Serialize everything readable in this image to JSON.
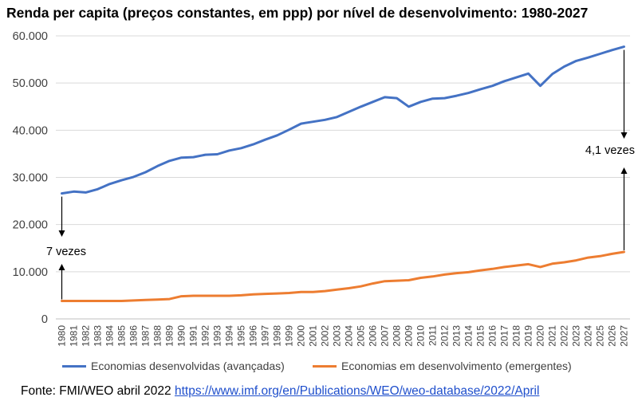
{
  "title": "Renda per capita (preços constantes, em ppp) por nível de desenvolvimento: 1980-2027",
  "footer": {
    "source_label": "Fonte: FMI/WEO abril 2022",
    "url": "https://www.imf.org/en/Publications/WEO/weo-database/2022/April"
  },
  "colors": {
    "advanced": "#4472c4",
    "emerging": "#ed7d31",
    "grid": "#d9d9d9"
  },
  "chart_data": {
    "type": "line",
    "title": "Renda per capita (preços constantes, em ppp) por nível de desenvolvimento: 1980-2027",
    "ylim": [
      0,
      60000
    ],
    "y_ticks": [
      {
        "value": 0,
        "label": "0"
      },
      {
        "value": 10000,
        "label": "10.000"
      },
      {
        "value": 20000,
        "label": "20.000"
      },
      {
        "value": 30000,
        "label": "30.000"
      },
      {
        "value": 40000,
        "label": "40.000"
      },
      {
        "value": 50000,
        "label": "50.000"
      },
      {
        "value": 60000,
        "label": "60.000"
      }
    ],
    "grid": true,
    "legend_position": "bottom",
    "x": [
      "1980",
      "1981",
      "1982",
      "1983",
      "1984",
      "1985",
      "1986",
      "1987",
      "1988",
      "1989",
      "1990",
      "1991",
      "1992",
      "1993",
      "1994",
      "1995",
      "1996",
      "1997",
      "1998",
      "1999",
      "2000",
      "2001",
      "2002",
      "2003",
      "2004",
      "2005",
      "2006",
      "2007",
      "2008",
      "2009",
      "2010",
      "2011",
      "2012",
      "2013",
      "2014",
      "2015",
      "2016",
      "2017",
      "2018",
      "2019",
      "2020",
      "2021",
      "2022",
      "2023",
      "2024",
      "2025",
      "2026",
      "2027"
    ],
    "series": [
      {
        "name": "Economias desenvolvidas (avançadas)",
        "values": [
          26600,
          27000,
          26800,
          27500,
          28600,
          29400,
          30100,
          31100,
          32400,
          33500,
          34200,
          34300,
          34800,
          34900,
          35700,
          36200,
          37000,
          38000,
          38900,
          40100,
          41400,
          41800,
          42200,
          42800,
          43900,
          45000,
          46000,
          47000,
          46800,
          45000,
          46000,
          46700,
          46800,
          47300,
          47900,
          48700,
          49400,
          50400,
          51200,
          52000,
          49400,
          51900,
          53500,
          54700,
          55400,
          56200,
          57000,
          57700
        ]
      },
      {
        "name": "Economias em desenvolvimento (emergentes)",
        "values": [
          3800,
          3800,
          3800,
          3800,
          3800,
          3800,
          3900,
          4000,
          4100,
          4200,
          4800,
          4900,
          4900,
          4900,
          4900,
          5000,
          5200,
          5300,
          5400,
          5500,
          5700,
          5700,
          5900,
          6200,
          6500,
          6900,
          7500,
          8000,
          8100,
          8200,
          8700,
          9000,
          9400,
          9700,
          9900,
          10300,
          10600,
          11000,
          11300,
          11600,
          11000,
          11700,
          12000,
          12400,
          13000,
          13300,
          13800,
          14200
        ]
      }
    ],
    "annotations": [
      {
        "text": "7 vezes"
      },
      {
        "text": "4,1 vezes"
      }
    ]
  }
}
